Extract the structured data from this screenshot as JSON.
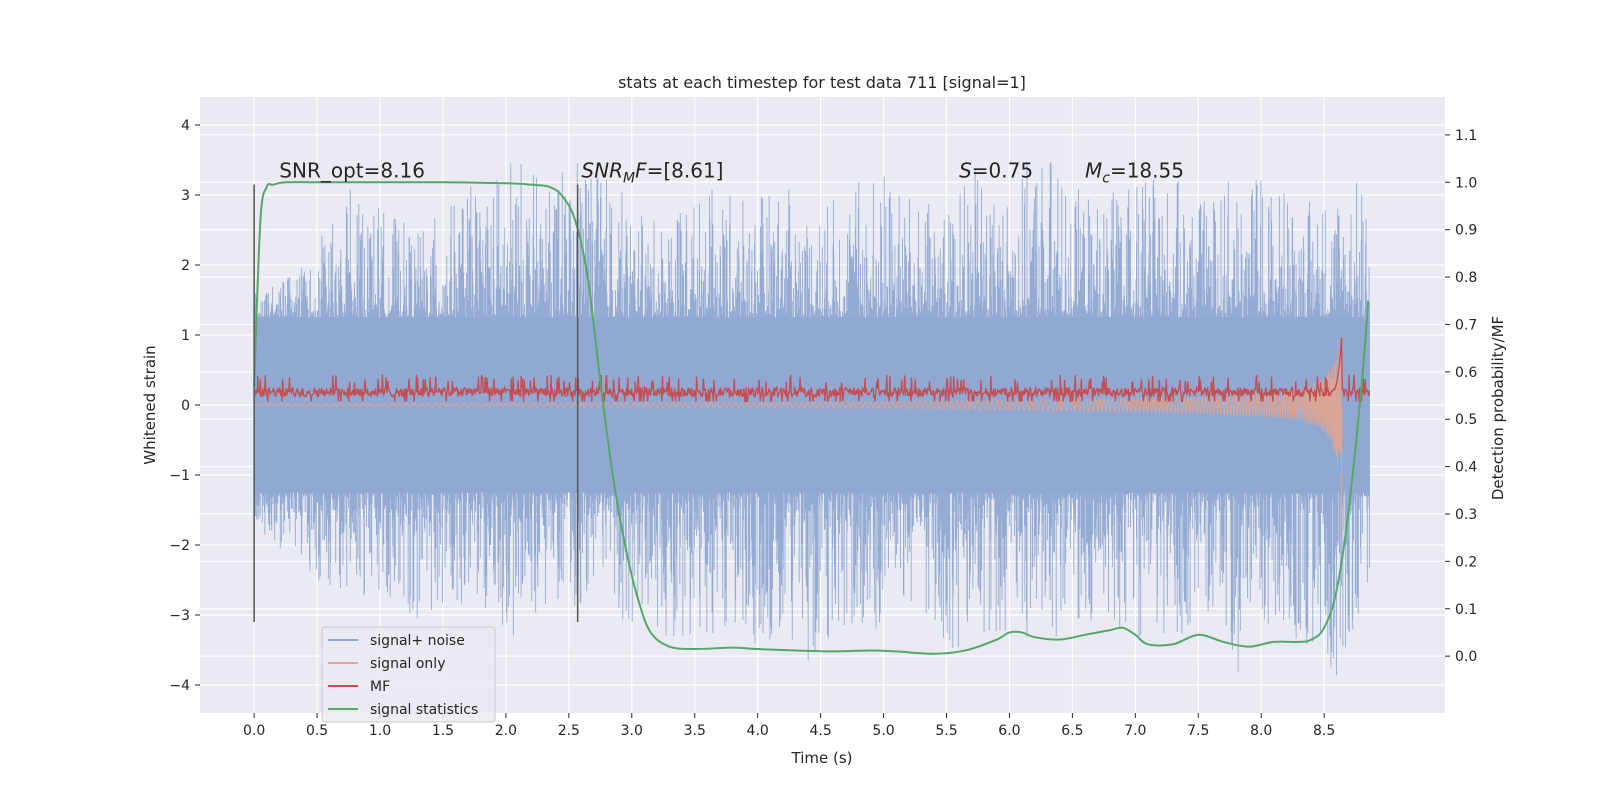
{
  "chart_data": {
    "type": "line",
    "title": "stats at each timestep for test data 711 [signal=1]",
    "xlabel": "Time (s)",
    "ylabel": "Whitened strain",
    "y2label": "Detection probability/MF",
    "xlim": [
      -0.43,
      9.46
    ],
    "ylim": [
      -4.4,
      4.4
    ],
    "y2lim": [
      -0.12,
      1.18
    ],
    "xticks": [
      0.0,
      0.5,
      1.0,
      1.5,
      2.0,
      2.5,
      3.0,
      3.5,
      4.0,
      4.5,
      5.0,
      5.5,
      6.0,
      6.5,
      7.0,
      7.5,
      8.0,
      8.5
    ],
    "xtick_labels": [
      "0.0",
      "0.5",
      "1.0",
      "1.5",
      "2.0",
      "2.5",
      "3.0",
      "3.5",
      "4.0",
      "4.5",
      "5.0",
      "5.5",
      "6.0",
      "6.5",
      "7.0",
      "7.5",
      "8.0",
      "8.5"
    ],
    "yticks": [
      4,
      3,
      2,
      1,
      0,
      -1,
      -2,
      -3,
      -4
    ],
    "ytick_labels": [
      "4",
      "3",
      "2",
      "1",
      "0",
      "−1",
      "−2",
      "−3",
      "−4"
    ],
    "y2ticks": [
      1.1,
      1.0,
      0.9,
      0.8,
      0.7,
      0.6,
      0.5,
      0.4,
      0.3,
      0.2,
      0.1,
      0.0
    ],
    "y2tick_labels": [
      "1.1",
      "1.0",
      "0.9",
      "0.8",
      "0.7",
      "0.6",
      "0.5",
      "0.4",
      "0.3",
      "0.2",
      "0.1",
      "0.0"
    ],
    "grid": true,
    "legend_placement": "lower-left",
    "series": [
      {
        "name": "signal+ noise",
        "axis": "left",
        "color": "#8fa8d2",
        "x_range": [
          0.0,
          8.86
        ],
        "envelope_upper": [
          1.6,
          1.8,
          2.4,
          3.2,
          2.8,
          2.5,
          2.9,
          3.3,
          3.6,
          3.1,
          3.8,
          3.2,
          2.6,
          2.9,
          3.1,
          2.9,
          3.2,
          2.8,
          3.1,
          3.5,
          3.0,
          2.8,
          3.4,
          3.0,
          3.9,
          3.1,
          3.0,
          3.2,
          3.3,
          2.9,
          3.4,
          3.3,
          2.9,
          3.2,
          3.3
        ],
        "envelope_lower": [
          -1.7,
          -2.2,
          -2.8,
          -2.8,
          -2.7,
          -3.1,
          -2.8,
          -3.2,
          -3.5,
          -2.8,
          -2.9,
          -3.1,
          -3.2,
          -3.4,
          -3.3,
          -3.5,
          -3.3,
          -3.7,
          -3.2,
          -3.4,
          -3.0,
          -3.6,
          -3.3,
          -3.3,
          -3.4,
          -3.2,
          -3.2,
          -3.4,
          -3.5,
          -3.2,
          -3.9,
          -3.3,
          -3.6,
          -3.9,
          -2.7
        ]
      },
      {
        "name": "signal only",
        "axis": "left",
        "color": "#e8a48c",
        "x": [
          0.0,
          2.0,
          4.0,
          5.0,
          6.0,
          7.0,
          7.5,
          8.0,
          8.2,
          8.4,
          8.5,
          8.55,
          8.6,
          8.63,
          8.64
        ],
        "amplitude": [
          0.02,
          0.025,
          0.04,
          0.05,
          0.07,
          0.1,
          0.12,
          0.16,
          0.2,
          0.28,
          0.38,
          0.5,
          0.8,
          1.5,
          0.0
        ]
      },
      {
        "name": "MF",
        "axis": "left",
        "color": "#c44e52",
        "x_range": [
          0.0,
          8.86
        ],
        "band_lower": 0.05,
        "band_upper": 0.32,
        "peak": {
          "x": 8.64,
          "y": 1.0
        }
      },
      {
        "name": "signal statistics",
        "axis": "right",
        "color": "#55a868",
        "x": [
          0.0,
          0.05,
          0.1,
          0.15,
          0.25,
          0.5,
          1.0,
          1.5,
          2.0,
          2.2,
          2.35,
          2.45,
          2.55,
          2.65,
          2.75,
          2.85,
          2.95,
          3.05,
          3.15,
          3.3,
          3.5,
          3.8,
          4.0,
          4.3,
          4.6,
          4.9,
          5.1,
          5.4,
          5.65,
          5.9,
          6.0,
          6.1,
          6.2,
          6.4,
          6.6,
          6.8,
          6.9,
          7.0,
          7.1,
          7.3,
          7.5,
          7.7,
          7.9,
          8.1,
          8.3,
          8.4,
          8.5,
          8.6,
          8.7,
          8.8,
          8.85
        ],
        "y": [
          0.57,
          0.92,
          0.99,
          0.995,
          1.0,
          1.0,
          1.0,
          1.0,
          0.998,
          0.995,
          0.99,
          0.97,
          0.92,
          0.8,
          0.58,
          0.38,
          0.23,
          0.12,
          0.05,
          0.02,
          0.015,
          0.018,
          0.015,
          0.012,
          0.01,
          0.012,
          0.01,
          0.005,
          0.012,
          0.035,
          0.05,
          0.05,
          0.04,
          0.035,
          0.045,
          0.055,
          0.06,
          0.045,
          0.025,
          0.025,
          0.045,
          0.03,
          0.02,
          0.03,
          0.03,
          0.035,
          0.06,
          0.14,
          0.32,
          0.58,
          0.75
        ]
      }
    ],
    "vlines": [
      {
        "x": 0.0,
        "ymin": -3.1,
        "ymax": 3.15,
        "color": "#555555"
      },
      {
        "x": 2.57,
        "ymin": -3.1,
        "ymax": 3.15,
        "color": "#555555"
      }
    ],
    "annotations": [
      {
        "text": "SNR_opt=8.16",
        "x": 0.2,
        "y": 3.25,
        "italic": false
      },
      {
        "text": "SNR_M F=[8.61]",
        "x": 2.6,
        "y": 3.25,
        "italic": true
      },
      {
        "text": "S=0.75",
        "x": 5.6,
        "y": 3.25,
        "italic": true
      },
      {
        "text": "M_c=18.55",
        "x": 6.6,
        "y": 3.25,
        "italic": true
      }
    ]
  },
  "colors": {
    "plot_background": "#eaeaf2",
    "grid": "#ffffff",
    "text": "#262626"
  }
}
